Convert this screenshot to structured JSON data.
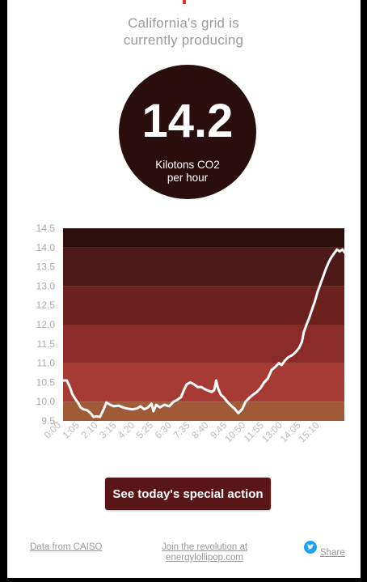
{
  "header": {
    "line1": "California's grid is",
    "line2": "currently producing"
  },
  "current": {
    "value": "14.2",
    "unit_line1": "Kilotons CO2",
    "unit_line2": "per hour"
  },
  "chart_data": {
    "type": "line",
    "title": "",
    "xlabel": "",
    "ylabel": "",
    "ylim": [
      9.5,
      14.5
    ],
    "y_ticks": [
      "9.5",
      "10.0",
      "10.5",
      "11.0",
      "11.5",
      "12.0",
      "12.5",
      "13.0",
      "13.5",
      "14.0",
      "14.5"
    ],
    "x_ticks": [
      "0:00",
      "1:05",
      "2:10",
      "3:15",
      "4:20",
      "5:25",
      "6:30",
      "7:35",
      "8:40",
      "9:45",
      "10:50",
      "11:55",
      "13:00",
      "14:05",
      "15:10"
    ],
    "bands": [
      {
        "from": 9.5,
        "to": 10.0,
        "color": "#a05a38"
      },
      {
        "from": 10.0,
        "to": 11.0,
        "color": "#a63b36"
      },
      {
        "from": 11.0,
        "to": 12.0,
        "color": "#8a2b29"
      },
      {
        "from": 12.0,
        "to": 13.0,
        "color": "#6c211f"
      },
      {
        "from": 13.0,
        "to": 14.0,
        "color": "#4e1a17"
      },
      {
        "from": 14.0,
        "to": 14.5,
        "color": "#2c0e0c"
      }
    ],
    "series": [
      {
        "line_color": "#ffffff",
        "points": [
          [
            0.0,
            10.55
          ],
          [
            0.2,
            10.55
          ],
          [
            0.35,
            10.4
          ],
          [
            0.5,
            10.2
          ],
          [
            0.65,
            10.08
          ],
          [
            0.8,
            9.98
          ],
          [
            0.95,
            9.85
          ],
          [
            1.1,
            9.8
          ],
          [
            1.3,
            9.78
          ],
          [
            1.5,
            9.7
          ],
          [
            1.65,
            9.6
          ],
          [
            1.8,
            9.62
          ],
          [
            2.0,
            9.6
          ],
          [
            2.2,
            9.8
          ],
          [
            2.35,
            9.98
          ],
          [
            2.55,
            9.92
          ],
          [
            2.75,
            9.88
          ],
          [
            3.0,
            9.9
          ],
          [
            3.25,
            9.85
          ],
          [
            3.5,
            9.82
          ],
          [
            3.75,
            9.8
          ],
          [
            4.0,
            9.82
          ],
          [
            4.2,
            9.88
          ],
          [
            4.4,
            9.8
          ],
          [
            4.6,
            9.85
          ],
          [
            4.8,
            9.95
          ],
          [
            4.9,
            9.75
          ],
          [
            5.05,
            9.92
          ],
          [
            5.25,
            9.85
          ],
          [
            5.5,
            9.92
          ],
          [
            5.75,
            9.88
          ],
          [
            6.0,
            10.0
          ],
          [
            6.2,
            10.05
          ],
          [
            6.4,
            10.12
          ],
          [
            6.55,
            10.3
          ],
          [
            6.7,
            10.45
          ],
          [
            6.9,
            10.5
          ],
          [
            7.1,
            10.45
          ],
          [
            7.3,
            10.38
          ],
          [
            7.5,
            10.38
          ],
          [
            7.7,
            10.32
          ],
          [
            7.9,
            10.28
          ],
          [
            8.05,
            10.25
          ],
          [
            8.2,
            10.3
          ],
          [
            8.3,
            10.55
          ],
          [
            8.4,
            10.35
          ],
          [
            8.55,
            10.18
          ],
          [
            8.7,
            10.12
          ],
          [
            8.9,
            10.0
          ],
          [
            9.1,
            9.9
          ],
          [
            9.3,
            9.82
          ],
          [
            9.5,
            9.7
          ],
          [
            9.7,
            9.8
          ],
          [
            9.9,
            10.0
          ],
          [
            10.1,
            10.1
          ],
          [
            10.3,
            10.18
          ],
          [
            10.5,
            10.25
          ],
          [
            10.7,
            10.35
          ],
          [
            10.9,
            10.5
          ],
          [
            11.1,
            10.6
          ],
          [
            11.3,
            10.82
          ],
          [
            11.5,
            10.9
          ],
          [
            11.7,
            11.0
          ],
          [
            11.85,
            10.95
          ],
          [
            12.0,
            11.05
          ],
          [
            12.2,
            11.15
          ],
          [
            12.4,
            11.2
          ],
          [
            12.6,
            11.28
          ],
          [
            12.8,
            11.4
          ],
          [
            12.95,
            11.55
          ],
          [
            13.05,
            11.8
          ],
          [
            13.2,
            12.0
          ],
          [
            13.35,
            12.18
          ],
          [
            13.5,
            12.4
          ],
          [
            13.65,
            12.6
          ],
          [
            13.8,
            12.85
          ],
          [
            13.95,
            13.05
          ],
          [
            14.1,
            13.25
          ],
          [
            14.25,
            13.45
          ],
          [
            14.4,
            13.62
          ],
          [
            14.55,
            13.75
          ],
          [
            14.7,
            13.85
          ],
          [
            14.85,
            13.95
          ],
          [
            15.0,
            13.9
          ],
          [
            15.15,
            13.95
          ],
          [
            15.3,
            13.85
          ],
          [
            15.45,
            14.05
          ],
          [
            15.6,
            14.2
          ]
        ]
      }
    ]
  },
  "action_button": {
    "label": "See today's special action"
  },
  "footer": {
    "data_source": "Data from CAISO",
    "join_line1": "Join the revolution at",
    "join_line2": "energylollipop.com",
    "share_label": "Share"
  }
}
